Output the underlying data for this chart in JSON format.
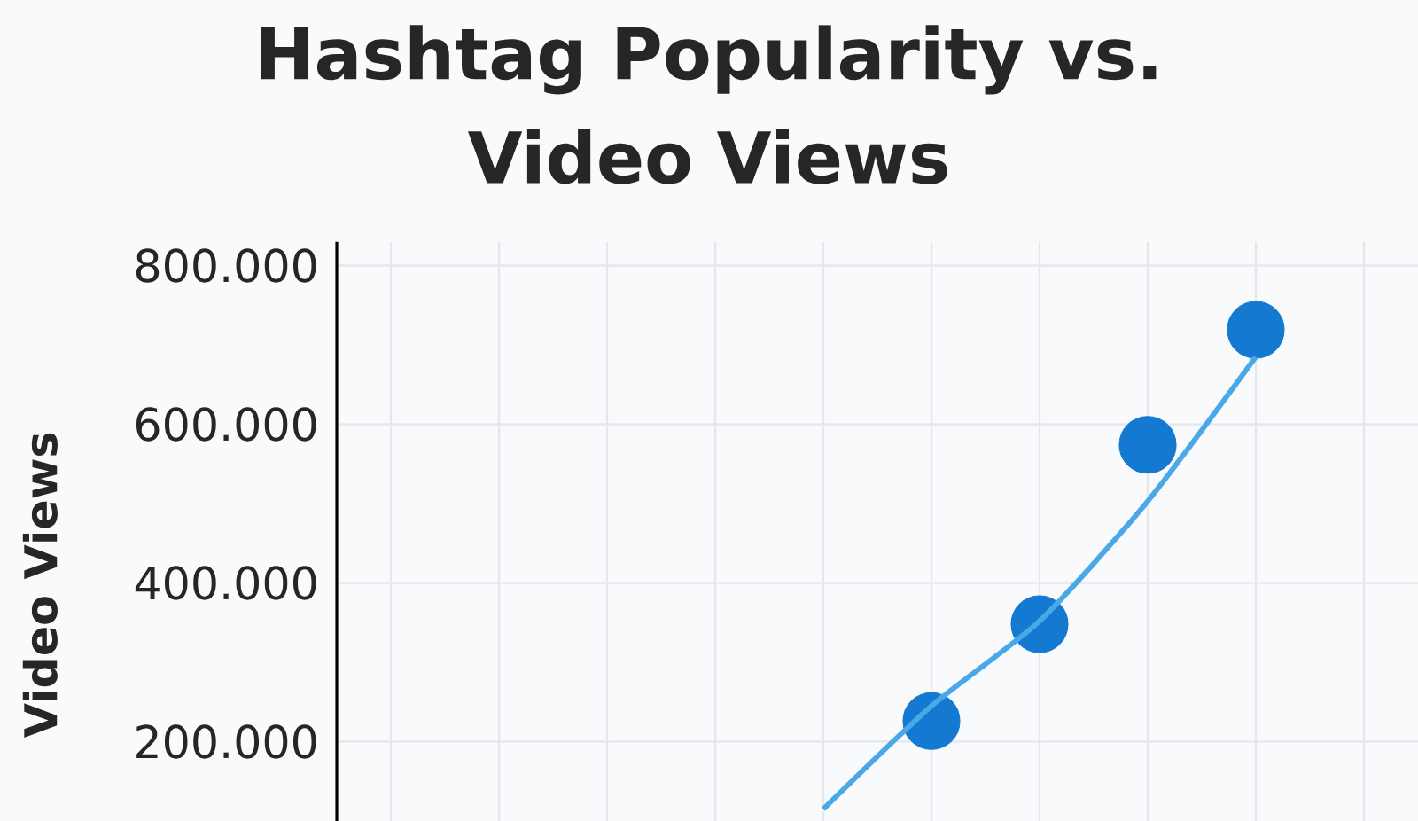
{
  "chart_data": {
    "type": "scatter",
    "title": "Hashtag Popularity vs.\nVideo Views",
    "ylabel": "Video Views",
    "categories": [
      null,
      null,
      null,
      null,
      null,
      null,
      null,
      null,
      null,
      null
    ],
    "ylim": [
      100000,
      830000
    ],
    "yticks": [
      {
        "value": 200000,
        "label": "200.000"
      },
      {
        "value": 400000,
        "label": "400.000"
      },
      {
        "value": 600000,
        "label": "600.000"
      },
      {
        "value": 800000,
        "label": "800.000"
      }
    ],
    "tick_labels": "y",
    "grid": true,
    "series": [
      {
        "marker": "circle",
        "color": "#1479d0",
        "values": [
          null,
          null,
          null,
          null,
          null,
          226000,
          348000,
          574000,
          719000,
          null
        ]
      },
      {
        "type": "line",
        "marker": "none",
        "color": "#4aa8e8",
        "values": [
          null,
          null,
          null,
          null,
          115000,
          245000,
          352000,
          503000,
          685000,
          null
        ]
      }
    ]
  }
}
